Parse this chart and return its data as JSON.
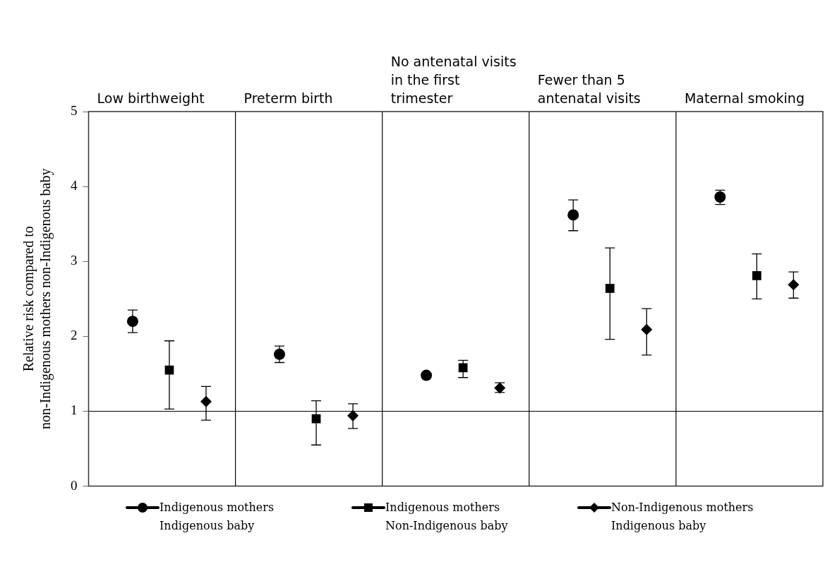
{
  "chart_data": {
    "type": "scatter",
    "ylabel": "Relative risk compared to non-Indigenous mothers non-Indigenous baby",
    "categories": [
      "Low birthweight",
      "Preterm birth",
      "No antenatal visits in the first trimester",
      "Fewer than 5 antenatal visits",
      "Maternal smoking"
    ],
    "ylim": [
      0,
      5
    ],
    "yticks": [
      0,
      1,
      2,
      3,
      4,
      5
    ],
    "grid": "x",
    "legend": "bottom",
    "ref_lines": [
      {
        "axis": "y",
        "value": 1
      }
    ],
    "series": [
      {
        "name": "Indigenous mothers Indigenous baby",
        "color": "#000000",
        "marker": "circle",
        "values": [
          2.2,
          1.76,
          1.48,
          3.62,
          3.86
        ],
        "errors": [
          [
            2.05,
            2.35
          ],
          [
            1.65,
            1.87
          ],
          null,
          [
            3.41,
            3.82
          ],
          [
            3.76,
            3.95
          ]
        ]
      },
      {
        "name": "Indigenous mothers Non-Indigenous baby",
        "color": "#000000",
        "marker": "square",
        "values": [
          1.55,
          0.9,
          1.58,
          2.64,
          2.81
        ],
        "errors": [
          [
            1.03,
            1.94
          ],
          [
            0.55,
            1.14
          ],
          [
            1.45,
            1.68
          ],
          [
            1.96,
            3.18
          ],
          [
            2.5,
            3.1
          ]
        ]
      },
      {
        "name": "Non-Indigenous mothers Indigenous baby",
        "color": "#000000",
        "marker": "diamond",
        "values": [
          1.13,
          0.94,
          1.31,
          2.09,
          2.69
        ],
        "errors": [
          [
            0.88,
            1.33
          ],
          [
            0.77,
            1.1
          ],
          [
            1.25,
            1.38
          ],
          [
            1.75,
            2.37
          ],
          [
            2.51,
            2.86
          ]
        ]
      }
    ]
  }
}
